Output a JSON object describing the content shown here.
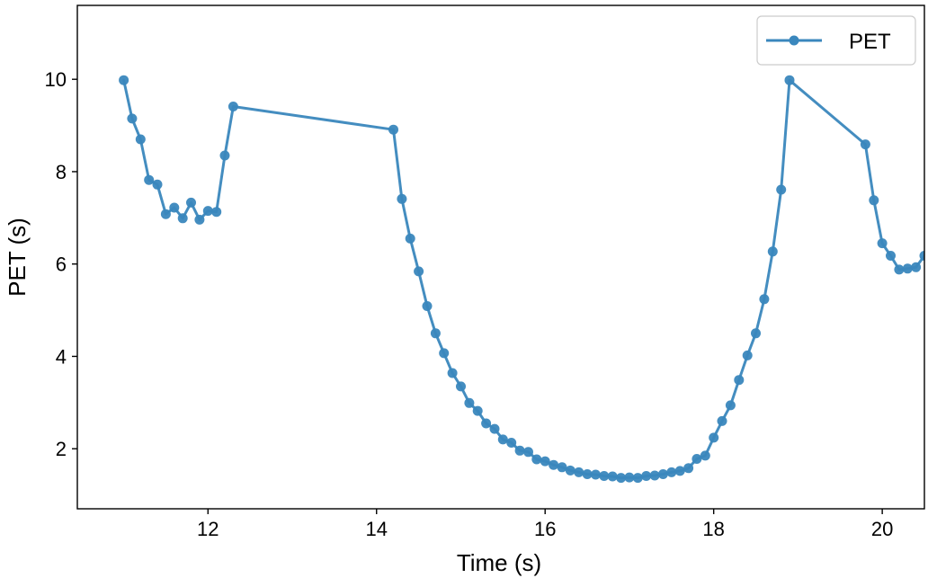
{
  "chart_data": {
    "type": "line",
    "xlabel": "Time (s)",
    "ylabel": "PET (s)",
    "xlim": [
      10.45,
      20.5
    ],
    "ylim": [
      0.7,
      11.6
    ],
    "xticks": [
      12,
      14,
      16,
      18,
      20
    ],
    "yticks": [
      2,
      4,
      6,
      8,
      10
    ],
    "grid": false,
    "legend_position": "top-right",
    "colors": {
      "series": "#3a87bd",
      "axes": "#000000"
    },
    "series": [
      {
        "name": "PET",
        "marker": "circle",
        "x": [
          11.0,
          11.1,
          11.2,
          11.3,
          11.4,
          11.5,
          11.6,
          11.7,
          11.8,
          11.9,
          12.0,
          12.1,
          12.2,
          12.3,
          14.2,
          14.3,
          14.4,
          14.5,
          14.6,
          14.7,
          14.8,
          14.9,
          15.0,
          15.1,
          15.2,
          15.3,
          15.4,
          15.5,
          15.6,
          15.7,
          15.8,
          15.9,
          16.0,
          16.1,
          16.2,
          16.3,
          16.4,
          16.5,
          16.6,
          16.7,
          16.8,
          16.9,
          17.0,
          17.1,
          17.2,
          17.3,
          17.4,
          17.5,
          17.6,
          17.7,
          17.8,
          17.9,
          18.0,
          18.1,
          18.2,
          18.3,
          18.4,
          18.5,
          18.6,
          18.7,
          18.8,
          18.9,
          19.8,
          19.9,
          20.0,
          20.1,
          20.2,
          20.3,
          20.4,
          20.5
        ],
        "y": [
          9.98,
          9.15,
          8.7,
          7.82,
          7.72,
          7.08,
          7.22,
          6.99,
          7.33,
          6.96,
          7.15,
          7.13,
          8.35,
          9.41,
          8.91,
          7.41,
          6.55,
          5.84,
          5.09,
          4.5,
          4.07,
          3.64,
          3.35,
          2.99,
          2.82,
          2.55,
          2.43,
          2.2,
          2.13,
          1.96,
          1.93,
          1.77,
          1.73,
          1.65,
          1.6,
          1.53,
          1.49,
          1.45,
          1.44,
          1.41,
          1.4,
          1.37,
          1.38,
          1.37,
          1.41,
          1.42,
          1.45,
          1.49,
          1.52,
          1.58,
          1.78,
          1.85,
          2.24,
          2.6,
          2.94,
          3.49,
          4.02,
          4.5,
          5.24,
          6.27,
          7.61,
          9.98,
          8.59,
          7.38,
          6.45,
          6.18,
          5.88,
          5.9,
          5.93,
          6.18
        ]
      }
    ]
  }
}
